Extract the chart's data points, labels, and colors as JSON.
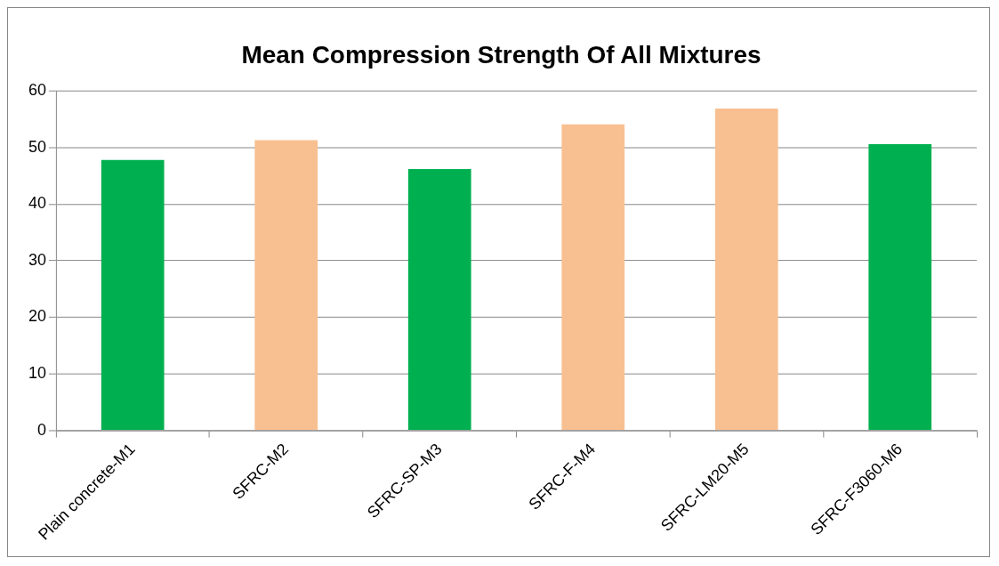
{
  "chart_data": {
    "type": "bar",
    "title": "Mean Compression Strength Of All Mixtures",
    "categories": [
      "Plain concrete-M1",
      "SFRC-M2",
      "SFRC-SP-M3",
      "SFRC-F-M4",
      "SFRC-LM20-M5",
      "SFRC-F3060-M6"
    ],
    "values": [
      47.8,
      51.3,
      46.2,
      54.1,
      56.9,
      50.6
    ],
    "colors": [
      "#00b050",
      "#f8c090",
      "#00b050",
      "#f8c090",
      "#f8c090",
      "#00b050"
    ],
    "ylim": [
      0,
      60
    ],
    "yticks": [
      0,
      10,
      20,
      30,
      40,
      50,
      60
    ],
    "grid": "y",
    "legend": false
  }
}
